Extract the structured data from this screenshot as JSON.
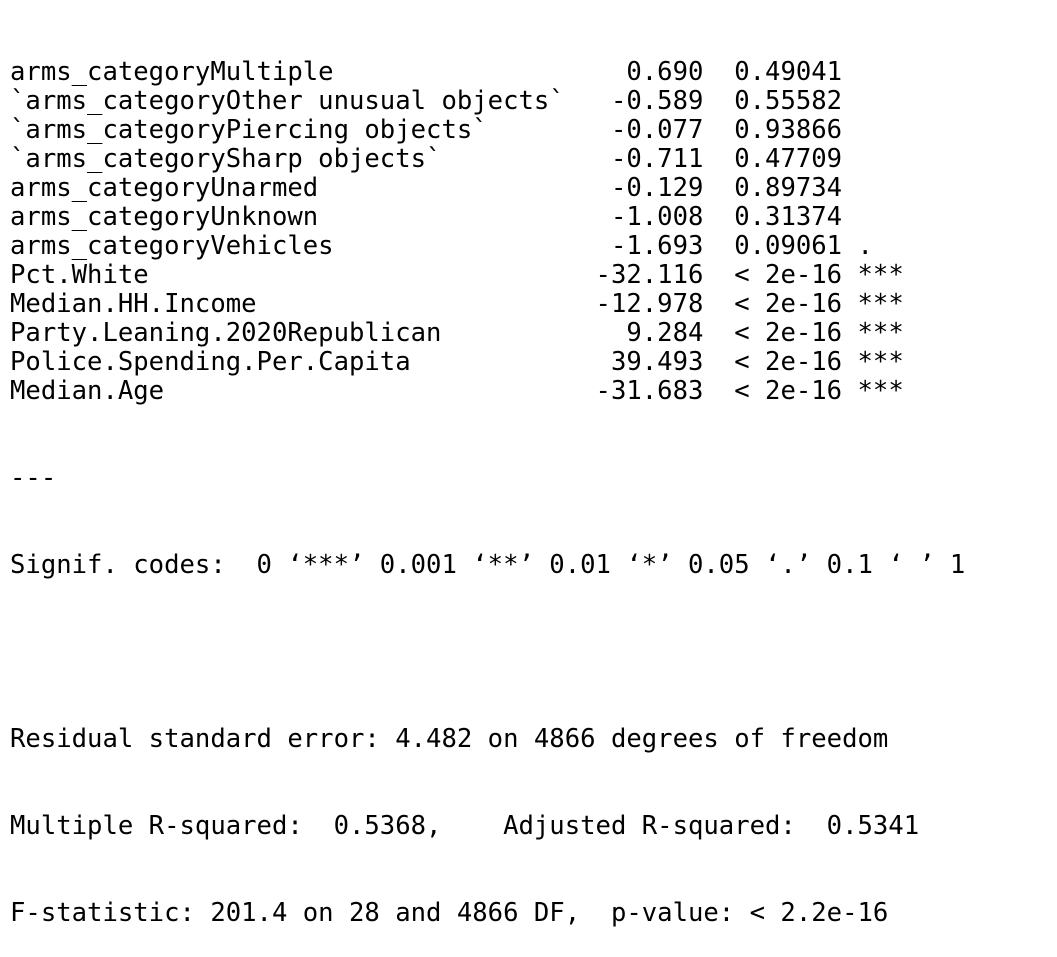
{
  "console": {
    "coef_rows": [
      {
        "term": "arms_categoryMultiple",
        "t_value": "0.690",
        "p_value": "0.49041",
        "signif": ""
      },
      {
        "term": "`arms_categoryOther unusual objects`",
        "t_value": "-0.589",
        "p_value": "0.55582",
        "signif": ""
      },
      {
        "term": "`arms_categoryPiercing objects`",
        "t_value": "-0.077",
        "p_value": "0.93866",
        "signif": ""
      },
      {
        "term": "`arms_categorySharp objects`",
        "t_value": "-0.711",
        "p_value": "0.47709",
        "signif": ""
      },
      {
        "term": "arms_categoryUnarmed",
        "t_value": "-0.129",
        "p_value": "0.89734",
        "signif": ""
      },
      {
        "term": "arms_categoryUnknown",
        "t_value": "-1.008",
        "p_value": "0.31374",
        "signif": ""
      },
      {
        "term": "arms_categoryVehicles",
        "t_value": "-1.693",
        "p_value": "0.09061",
        "signif": "."
      },
      {
        "term": "Pct.White",
        "t_value": "-32.116",
        "p_value": "< 2e-16",
        "signif": "***"
      },
      {
        "term": "Median.HH.Income",
        "t_value": "-12.978",
        "p_value": "< 2e-16",
        "signif": "***"
      },
      {
        "term": "Party.Leaning.2020Republican",
        "t_value": "9.284",
        "p_value": "< 2e-16",
        "signif": "***"
      },
      {
        "term": "Police.Spending.Per.Capita",
        "t_value": "39.493",
        "p_value": "< 2e-16",
        "signif": "***"
      },
      {
        "term": "Median.Age",
        "t_value": "-31.683",
        "p_value": "< 2e-16",
        "signif": "***"
      }
    ],
    "separator": "---",
    "signif_codes": "Signif. codes:  0 ‘***’ 0.001 ‘**’ 0.01 ‘*’ 0.05 ‘.’ 0.1 ‘ ’ 1",
    "residual_se": "Residual standard error: 4.482 on 4866 degrees of freedom",
    "r_squared": "Multiple R-squared:  0.5368,\tAdjusted R-squared:  0.5341 ",
    "f_statistic": "F-statistic: 201.4 on 28 and 4866 DF,  p-value: < 2.2e-16"
  }
}
